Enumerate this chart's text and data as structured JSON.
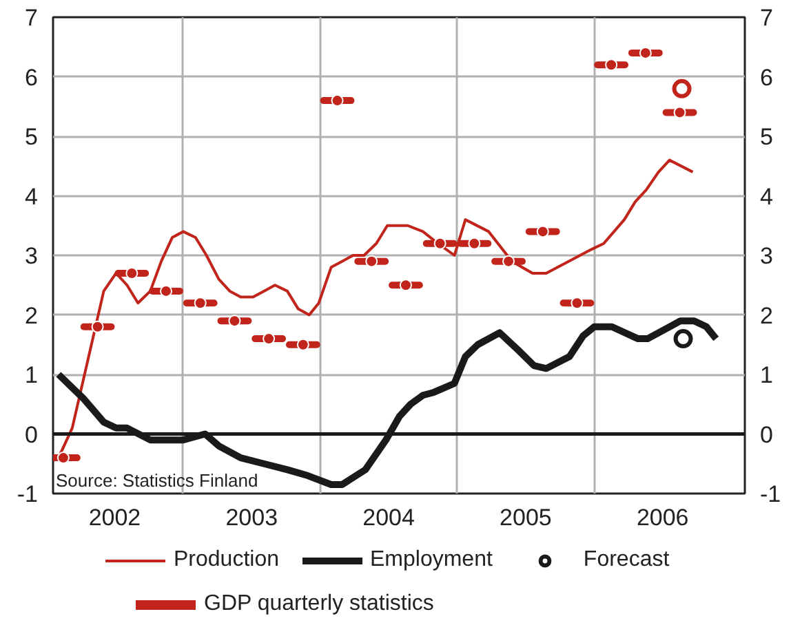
{
  "chart_data": {
    "type": "line",
    "xlim": [
      2002.05,
      2007.1
    ],
    "xticks": [
      {
        "value": 2002.5,
        "label": "2002"
      },
      {
        "value": 2003.5,
        "label": "2003"
      },
      {
        "value": 2004.5,
        "label": "2004"
      },
      {
        "value": 2005.5,
        "label": "2005"
      },
      {
        "value": 2006.5,
        "label": "2006"
      },
      {
        "value": 2003,
        "label": null
      },
      {
        "value": 2004,
        "label": null
      },
      {
        "value": 2005,
        "label": null
      },
      {
        "value": 2006,
        "label": null
      }
    ],
    "ylim": [
      -1,
      7
    ],
    "yticks": [
      -1,
      0,
      1,
      2,
      3,
      4,
      5,
      6,
      7
    ],
    "y2lim": [
      -1,
      7
    ],
    "y2ticks": [
      -1,
      0,
      1,
      2,
      3,
      4,
      5,
      6,
      7
    ],
    "grid": true,
    "legend": "bottom",
    "ref_lines": [
      {
        "axis": "y",
        "value": 0,
        "color": "#1a1a1a"
      }
    ],
    "annotations": [
      "Source: Statistics Finland"
    ],
    "series": [
      {
        "name": "Production",
        "color": "#c0241a",
        "x": [
          2002.09,
          2002.19,
          2002.42,
          2002.51,
          2002.59,
          2002.67,
          2002.76,
          2002.84,
          2002.92,
          2003.0,
          2003.09,
          2003.17,
          2003.26,
          2003.34,
          2003.42,
          2003.51,
          2003.59,
          2003.67,
          2003.76,
          2003.84,
          2003.92,
          2003.99,
          2004.08,
          2004.16,
          2004.24,
          2004.32,
          2004.41,
          2004.49,
          2004.64,
          2004.75,
          2004.86,
          2004.98,
          2005.06,
          2005.23,
          2005.4,
          2005.55,
          2005.65,
          2005.98,
          2006.07,
          2006.22,
          2006.3,
          2006.38,
          2006.47,
          2006.55,
          2006.72
        ],
        "values": [
          -0.4,
          0.1,
          2.4,
          2.7,
          2.5,
          2.2,
          2.4,
          2.9,
          3.3,
          3.4,
          3.3,
          3.0,
          2.6,
          2.4,
          2.3,
          2.3,
          2.4,
          2.5,
          2.4,
          2.1,
          2.0,
          2.2,
          2.8,
          2.9,
          3.0,
          3.0,
          3.2,
          3.5,
          3.5,
          3.4,
          3.2,
          3.0,
          3.6,
          3.4,
          2.9,
          2.7,
          2.7,
          3.1,
          3.2,
          3.6,
          3.9,
          4.1,
          4.4,
          4.6,
          4.4
        ]
      },
      {
        "name": "Employment",
        "color": "#1a1a1a",
        "x": [
          2002.09,
          2002.27,
          2002.42,
          2002.51,
          2002.59,
          2002.76,
          2003.0,
          2003.16,
          2003.26,
          2003.42,
          2003.59,
          2003.76,
          2003.91,
          2004.08,
          2004.16,
          2004.33,
          2004.48,
          2004.58,
          2004.66,
          2004.75,
          2004.83,
          2004.98,
          2005.06,
          2005.15,
          2005.31,
          2005.45,
          2005.56,
          2005.65,
          2005.82,
          2005.92,
          2006.0,
          2006.13,
          2006.32,
          2006.39,
          2006.55,
          2006.63,
          2006.73,
          2006.82,
          2006.89
        ],
        "values": [
          1.0,
          0.6,
          0.2,
          0.1,
          0.1,
          -0.1,
          -0.1,
          0.0,
          -0.2,
          -0.4,
          -0.5,
          -0.6,
          -0.7,
          -0.85,
          -0.85,
          -0.6,
          -0.1,
          0.3,
          0.5,
          0.65,
          0.7,
          0.85,
          1.3,
          1.5,
          1.7,
          1.4,
          1.15,
          1.1,
          1.3,
          1.65,
          1.8,
          1.8,
          1.6,
          1.6,
          1.8,
          1.9,
          1.9,
          1.8,
          1.6
        ]
      },
      {
        "name": "Forecast",
        "type": "scatter",
        "marker": "circle",
        "color": "#1a1a1a",
        "colors": [
          "#c0241a",
          "#1a1a1a"
        ],
        "x": [
          2006.64,
          2006.65
        ],
        "values": [
          5.8,
          1.6
        ]
      },
      {
        "name": "GDP quarterly statistics",
        "type": "scatter",
        "color": "#c0241a",
        "x": [
          2002.125,
          2002.375,
          2002.625,
          2002.875,
          2003.125,
          2003.375,
          2003.625,
          2003.875,
          2004.125,
          2004.375,
          2004.625,
          2004.875,
          2005.125,
          2005.375,
          2005.625,
          2005.875,
          2006.125,
          2006.375,
          2006.625
        ],
        "values": [
          -0.4,
          1.8,
          2.7,
          2.4,
          2.2,
          1.9,
          1.6,
          1.5,
          5.6,
          2.9,
          2.5,
          3.2,
          3.2,
          2.9,
          3.4,
          2.2,
          6.2,
          6.4,
          5.4
        ],
        "xerrors": [
          0.1,
          0.1,
          0.1,
          0.1,
          0.1,
          0.1,
          0.1,
          0.1,
          0.1,
          0.1,
          0.1,
          0.1,
          0.1,
          0.1,
          0.1,
          0.1,
          0.1,
          0.1,
          0.1
        ]
      }
    ]
  }
}
